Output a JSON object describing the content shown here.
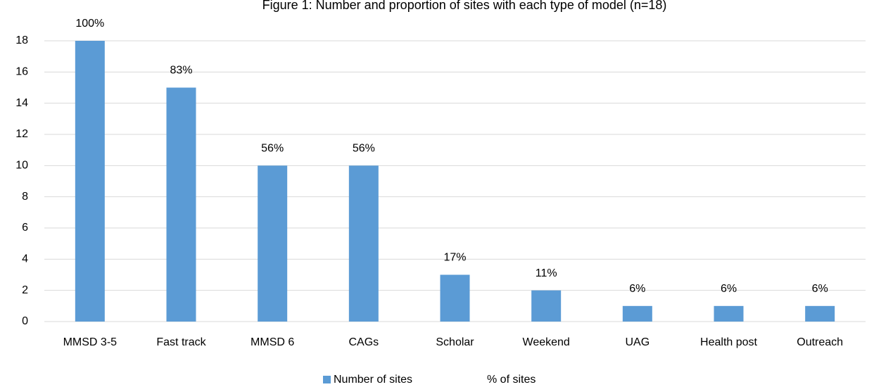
{
  "chart_data": {
    "type": "bar",
    "title": "Figure 1: Number and proportion of sites with each type of model (n=18)",
    "categories": [
      "MMSD 3-5",
      "Fast track",
      "MMSD 6",
      "CAGs",
      "Scholar",
      "Weekend",
      "UAG",
      "Health post",
      "Outreach"
    ],
    "series": [
      {
        "name": "Number of sites",
        "color": "#5b9bd5",
        "values": [
          18,
          15,
          10,
          10,
          3,
          2,
          1,
          1,
          1
        ]
      },
      {
        "name": "% of sites",
        "values": [
          100,
          83,
          56,
          56,
          17,
          11,
          6,
          6,
          6
        ],
        "value_labels": [
          "100%",
          "83%",
          "56%",
          "56%",
          "17%",
          "11%",
          "6%",
          "6%",
          "6%"
        ]
      }
    ],
    "ylim": [
      0,
      18
    ],
    "yticks": [
      0,
      2,
      4,
      6,
      8,
      10,
      12,
      14,
      16,
      18
    ],
    "grid": true,
    "legend": "bottom"
  }
}
